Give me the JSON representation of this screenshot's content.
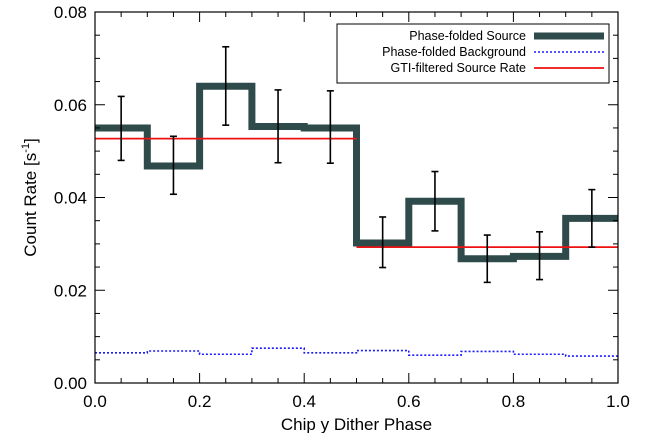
{
  "chart_data": {
    "type": "line",
    "title": "",
    "xlabel": "Chip y Dither Phase",
    "ylabel_main": "Count Rate [s",
    "ylabel_sup": "-1",
    "ylabel_close": "]",
    "xlim": [
      0.0,
      1.0
    ],
    "ylim": [
      0.0,
      0.08
    ],
    "xticks": [
      {
        "value": 0.0,
        "label": "0.0"
      },
      {
        "value": 0.2,
        "label": "0.2"
      },
      {
        "value": 0.4,
        "label": "0.4"
      },
      {
        "value": 0.6,
        "label": "0.6"
      },
      {
        "value": 0.8,
        "label": "0.8"
      },
      {
        "value": 1.0,
        "label": "1.0"
      }
    ],
    "yticks": [
      {
        "value": 0.0,
        "label": "0.00"
      },
      {
        "value": 0.02,
        "label": "0.02"
      },
      {
        "value": 0.04,
        "label": "0.04"
      },
      {
        "value": 0.06,
        "label": "0.06"
      },
      {
        "value": 0.08,
        "label": "0.08"
      }
    ],
    "grid": false,
    "legend_position": "top-right",
    "bin_edges": [
      0.0,
      0.1,
      0.2,
      0.3,
      0.4,
      0.5,
      0.6,
      0.7,
      0.8,
      0.9,
      1.0
    ],
    "series": [
      {
        "name": "Phase-folded Source",
        "style": "histogram",
        "color": "#2f4a4a",
        "x": [
          0.05,
          0.15,
          0.25,
          0.35,
          0.45,
          0.55,
          0.65,
          0.75,
          0.85,
          0.95
        ],
        "values": [
          0.055,
          0.0468,
          0.064,
          0.0553,
          0.055,
          0.0302,
          0.0392,
          0.0268,
          0.0273,
          0.0355
        ],
        "error_low": [
          0.048,
          0.0407,
          0.0556,
          0.0475,
          0.0474,
          0.0249,
          0.0328,
          0.0217,
          0.0223,
          0.0293
        ],
        "error_high": [
          0.0618,
          0.0532,
          0.0725,
          0.0632,
          0.063,
          0.0358,
          0.0456,
          0.0319,
          0.0326,
          0.0417
        ]
      },
      {
        "name": "Phase-folded Background",
        "style": "dotted-histogram",
        "color": "#1a1aff",
        "x": [
          0.05,
          0.15,
          0.25,
          0.35,
          0.45,
          0.55,
          0.65,
          0.75,
          0.85,
          0.95
        ],
        "values": [
          0.0065,
          0.0069,
          0.0062,
          0.0075,
          0.0065,
          0.007,
          0.006,
          0.0068,
          0.0062,
          0.0058
        ]
      },
      {
        "name": "GTI-filtered Source Rate",
        "style": "segments",
        "color": "#ee1111",
        "segments": [
          {
            "x0": 0.0,
            "x1": 0.5,
            "y": 0.0527
          },
          {
            "x0": 0.5,
            "x1": 1.0,
            "y": 0.0293
          }
        ]
      }
    ]
  }
}
